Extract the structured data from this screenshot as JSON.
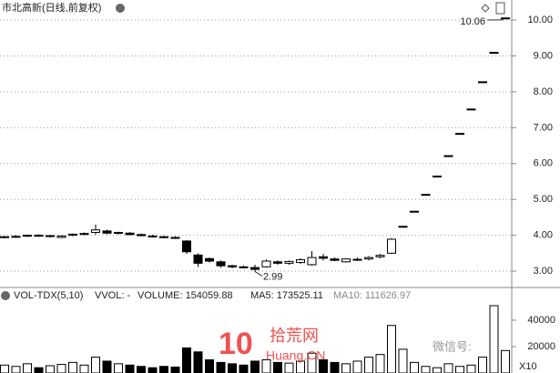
{
  "chart_data": [
    {
      "type": "candlestick",
      "title": "市北高新(日线,前复权)",
      "open": [
        3.95,
        3.96,
        3.98,
        4.0,
        3.97,
        3.94,
        4.0,
        4.03,
        4.08,
        4.12,
        4.06,
        4.06,
        4.02,
        3.98,
        3.96,
        3.94,
        3.84,
        3.45,
        3.35,
        3.26,
        3.15,
        3.12,
        3.1,
        3.12,
        3.26,
        3.22,
        3.24,
        3.18,
        3.4,
        3.34,
        3.26,
        3.32,
        3.34,
        3.4,
        3.5,
        4.25,
        4.67,
        5.14,
        5.65,
        6.22,
        6.84,
        7.52,
        8.28,
        9.1,
        10.06
      ],
      "high": [
        3.98,
        4.0,
        4.02,
        4.03,
        4.01,
        4.0,
        4.05,
        4.08,
        4.3,
        4.16,
        4.1,
        4.09,
        4.05,
        4.01,
        3.99,
        3.97,
        3.86,
        3.5,
        3.38,
        3.3,
        3.18,
        3.16,
        3.18,
        3.32,
        3.3,
        3.3,
        3.36,
        3.56,
        3.48,
        3.38,
        3.36,
        3.38,
        3.42,
        3.48,
        3.92,
        4.25,
        4.67,
        5.14,
        5.65,
        6.22,
        6.84,
        7.52,
        8.28,
        9.1,
        10.06
      ],
      "low": [
        3.92,
        3.93,
        3.95,
        3.96,
        3.94,
        3.92,
        3.97,
        4.0,
        4.02,
        4.03,
        4.02,
        4.0,
        3.97,
        3.94,
        3.92,
        3.9,
        3.48,
        3.12,
        3.24,
        3.1,
        3.08,
        3.07,
        2.99,
        3.1,
        3.18,
        3.18,
        3.2,
        3.15,
        3.3,
        3.28,
        3.24,
        3.28,
        3.3,
        3.36,
        3.48,
        4.25,
        4.67,
        5.14,
        5.65,
        6.22,
        6.84,
        7.52,
        8.28,
        9.1,
        10.06
      ],
      "close": [
        3.96,
        3.97,
        4.0,
        3.98,
        3.99,
        3.98,
        4.03,
        4.05,
        4.15,
        4.06,
        4.08,
        4.02,
        3.99,
        3.96,
        3.94,
        3.92,
        3.54,
        3.22,
        3.28,
        3.15,
        3.12,
        3.1,
        3.05,
        3.28,
        3.22,
        3.27,
        3.32,
        3.38,
        3.36,
        3.3,
        3.34,
        3.33,
        3.38,
        3.44,
        3.89,
        4.25,
        4.67,
        5.14,
        5.65,
        6.22,
        6.84,
        7.52,
        8.28,
        9.1,
        10.06
      ],
      "up_color": "#ffffff",
      "down_color": "#000000",
      "ylim": [
        2.57,
        10.56
      ],
      "yticks": [
        {
          "value": 3,
          "label": "3.00"
        },
        {
          "value": 4,
          "label": "4.00"
        },
        {
          "value": 5,
          "label": "5.00"
        },
        {
          "value": 6,
          "label": "6.00"
        },
        {
          "value": 7,
          "label": "7.00"
        },
        {
          "value": 8,
          "label": "8.00"
        },
        {
          "value": 9,
          "label": "9.00"
        },
        {
          "value": 10,
          "label": "10.00"
        }
      ],
      "grid": true,
      "annotations": [
        {
          "text": "10.06",
          "value": 10.06,
          "index": 44
        },
        {
          "text": "2.99",
          "value": 2.99,
          "index": 22
        }
      ]
    },
    {
      "type": "bar",
      "title": "VOL-TDX(5,10)",
      "header": [
        "VVOL: -",
        "VOLUME: 154059.88",
        "MA5: 173525.11",
        "MA10: 111626.97"
      ],
      "values": [
        6000,
        5000,
        7000,
        4000,
        5500,
        6500,
        8000,
        6000,
        12000,
        9000,
        7000,
        6000,
        5000,
        4000,
        5000,
        4500,
        19000,
        16000,
        10000,
        8000,
        7000,
        6000,
        9000,
        10000,
        8000,
        7500,
        9000,
        15000,
        10000,
        8000,
        7000,
        9000,
        12000,
        14000,
        36000,
        18000,
        8000,
        5000,
        4000,
        7000,
        5000,
        6000,
        12000,
        51000,
        17000
      ],
      "ylim": [
        0,
        63400
      ],
      "yticks": [
        20000,
        40000
      ],
      "unit_label": "X10"
    }
  ],
  "watermark": [
    "拾荒网",
    "Huang.CN",
    "微信号:"
  ]
}
